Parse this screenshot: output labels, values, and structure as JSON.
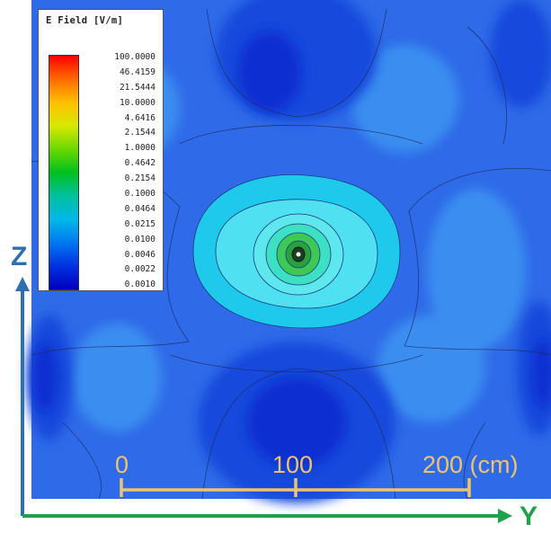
{
  "legend": {
    "title": "E Field [V/m]",
    "values": [
      "100.0000",
      "46.4159",
      "21.5444",
      "10.0000",
      "4.6416",
      "2.1544",
      "1.0000",
      "0.4642",
      "0.2154",
      "0.1000",
      "0.0464",
      "0.0215",
      "0.0100",
      "0.0046",
      "0.0022",
      "0.0010"
    ],
    "gradient_colors": [
      "#ff0000",
      "#ff6a00",
      "#ffc000",
      "#d8e800",
      "#6ad800",
      "#00c020",
      "#00c0a0",
      "#00b8e8",
      "#0078f0",
      "#0030e0",
      "#0000c0"
    ]
  },
  "axes": {
    "vertical_label": "Z",
    "horizontal_label": "Y",
    "vertical_color": "#2f6fb0",
    "horizontal_color": "#22a14c"
  },
  "scale_bar": {
    "labels": [
      "0",
      "100",
      "200 (cm)"
    ],
    "color": "#f0c36a"
  },
  "field_colors": {
    "deep": "#0a2fd0",
    "dark": "#1848dc",
    "mid": "#2f6ae8",
    "light": "#3a8ef0",
    "cyan": "#1fc9ec",
    "pale": "#4fe0f2",
    "green": "#3ec858"
  }
}
